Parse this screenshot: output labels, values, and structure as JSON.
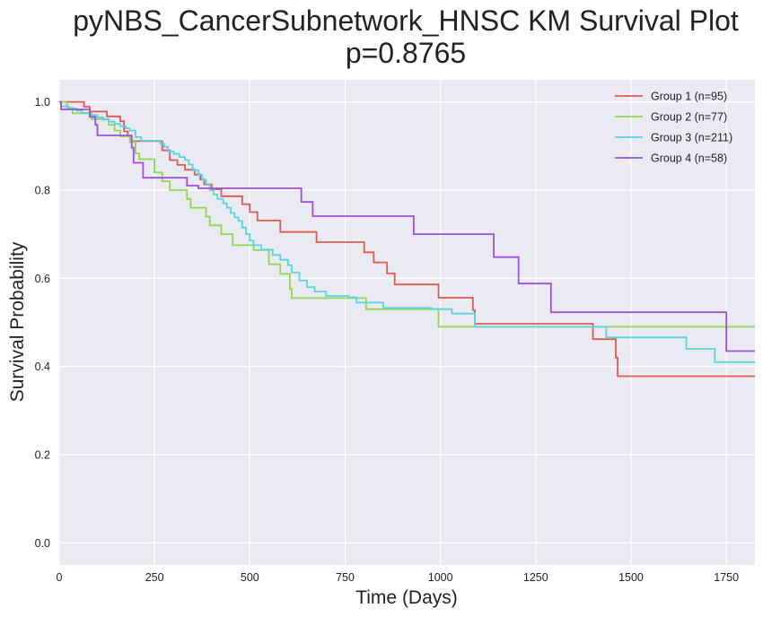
{
  "chart_data": {
    "type": "line",
    "step": true,
    "title": "pyNBS_CancerSubnetwork_HNSC KM Survival Plot",
    "subtitle": "p=0.8765",
    "xlabel": "Time (Days)",
    "ylabel": "Survival Probability",
    "xlim": [
      0,
      1825
    ],
    "ylim": [
      -0.05,
      1.05
    ],
    "xticks": [
      0,
      250,
      500,
      750,
      1000,
      1250,
      1500,
      1750
    ],
    "yticks": [
      0.0,
      0.2,
      0.4,
      0.6,
      0.8,
      1.0
    ],
    "xtick_labels": [
      "0",
      "250",
      "500",
      "750",
      "1000",
      "1250",
      "1500",
      "1750"
    ],
    "ytick_labels": [
      "0.0",
      "0.2",
      "0.4",
      "0.6",
      "0.8",
      "1.0"
    ],
    "grid": true,
    "background": "#eaeaf2",
    "legend_position": "top-right",
    "series": [
      {
        "name": "Group 1 (n=95)",
        "color": "#e05a4f",
        "points": [
          [
            0,
            1.0
          ],
          [
            60,
            1.0
          ],
          [
            65,
            0.989
          ],
          [
            80,
            0.978
          ],
          [
            125,
            0.967
          ],
          [
            150,
            0.967
          ],
          [
            160,
            0.956
          ],
          [
            170,
            0.933
          ],
          [
            180,
            0.922
          ],
          [
            190,
            0.911
          ],
          [
            255,
            0.911
          ],
          [
            270,
            0.89
          ],
          [
            290,
            0.868
          ],
          [
            310,
            0.857
          ],
          [
            330,
            0.846
          ],
          [
            355,
            0.835
          ],
          [
            370,
            0.824
          ],
          [
            380,
            0.813
          ],
          [
            400,
            0.802
          ],
          [
            425,
            0.786
          ],
          [
            465,
            0.786
          ],
          [
            480,
            0.768
          ],
          [
            500,
            0.75
          ],
          [
            520,
            0.731
          ],
          [
            570,
            0.731
          ],
          [
            580,
            0.705
          ],
          [
            670,
            0.705
          ],
          [
            675,
            0.682
          ],
          [
            790,
            0.682
          ],
          [
            800,
            0.659
          ],
          [
            825,
            0.636
          ],
          [
            850,
            0.636
          ],
          [
            860,
            0.611
          ],
          [
            880,
            0.586
          ],
          [
            990,
            0.586
          ],
          [
            995,
            0.556
          ],
          [
            1080,
            0.556
          ],
          [
            1085,
            0.528
          ],
          [
            1090,
            0.497
          ],
          [
            1395,
            0.497
          ],
          [
            1400,
            0.462
          ],
          [
            1455,
            0.462
          ],
          [
            1460,
            0.42
          ],
          [
            1465,
            0.378
          ],
          [
            1825,
            0.378
          ]
        ]
      },
      {
        "name": "Group 2 (n=77)",
        "color": "#8fd651",
        "points": [
          [
            0,
            1.0
          ],
          [
            10,
            1.0
          ],
          [
            20,
            0.987
          ],
          [
            35,
            0.974
          ],
          [
            70,
            0.974
          ],
          [
            85,
            0.961
          ],
          [
            120,
            0.961
          ],
          [
            130,
            0.948
          ],
          [
            145,
            0.935
          ],
          [
            160,
            0.922
          ],
          [
            175,
            0.922
          ],
          [
            185,
            0.909
          ],
          [
            200,
            0.883
          ],
          [
            210,
            0.87
          ],
          [
            240,
            0.87
          ],
          [
            250,
            0.84
          ],
          [
            270,
            0.82
          ],
          [
            290,
            0.8
          ],
          [
            330,
            0.8
          ],
          [
            335,
            0.78
          ],
          [
            345,
            0.76
          ],
          [
            380,
            0.76
          ],
          [
            385,
            0.74
          ],
          [
            395,
            0.72
          ],
          [
            420,
            0.72
          ],
          [
            425,
            0.7
          ],
          [
            445,
            0.7
          ],
          [
            455,
            0.675
          ],
          [
            505,
            0.675
          ],
          [
            510,
            0.664
          ],
          [
            545,
            0.664
          ],
          [
            550,
            0.632
          ],
          [
            575,
            0.632
          ],
          [
            580,
            0.61
          ],
          [
            600,
            0.61
          ],
          [
            605,
            0.576
          ],
          [
            610,
            0.555
          ],
          [
            800,
            0.555
          ],
          [
            805,
            0.53
          ],
          [
            920,
            0.53
          ],
          [
            990,
            0.53
          ],
          [
            995,
            0.49
          ],
          [
            1825,
            0.49
          ]
        ]
      },
      {
        "name": "Group 3 (n=211)",
        "color": "#56d4e0",
        "points": [
          [
            0,
            1.0
          ],
          [
            5,
            0.99
          ],
          [
            25,
            0.985
          ],
          [
            45,
            0.98
          ],
          [
            60,
            0.975
          ],
          [
            80,
            0.97
          ],
          [
            100,
            0.965
          ],
          [
            115,
            0.96
          ],
          [
            130,
            0.955
          ],
          [
            145,
            0.95
          ],
          [
            160,
            0.945
          ],
          [
            175,
            0.94
          ],
          [
            185,
            0.935
          ],
          [
            200,
            0.92
          ],
          [
            215,
            0.912
          ],
          [
            255,
            0.912
          ],
          [
            265,
            0.905
          ],
          [
            275,
            0.898
          ],
          [
            285,
            0.888
          ],
          [
            300,
            0.882
          ],
          [
            315,
            0.875
          ],
          [
            330,
            0.868
          ],
          [
            340,
            0.858
          ],
          [
            350,
            0.845
          ],
          [
            365,
            0.834
          ],
          [
            375,
            0.823
          ],
          [
            385,
            0.812
          ],
          [
            395,
            0.8
          ],
          [
            405,
            0.79
          ],
          [
            415,
            0.78
          ],
          [
            430,
            0.77
          ],
          [
            440,
            0.76
          ],
          [
            450,
            0.748
          ],
          [
            460,
            0.738
          ],
          [
            470,
            0.73
          ],
          [
            480,
            0.715
          ],
          [
            490,
            0.7
          ],
          [
            500,
            0.685
          ],
          [
            510,
            0.675
          ],
          [
            530,
            0.665
          ],
          [
            560,
            0.653
          ],
          [
            580,
            0.642
          ],
          [
            600,
            0.63
          ],
          [
            610,
            0.613
          ],
          [
            630,
            0.595
          ],
          [
            650,
            0.58
          ],
          [
            670,
            0.57
          ],
          [
            700,
            0.56
          ],
          [
            760,
            0.557
          ],
          [
            780,
            0.545
          ],
          [
            850,
            0.533
          ],
          [
            925,
            0.533
          ],
          [
            975,
            0.53
          ],
          [
            1030,
            0.52
          ],
          [
            1085,
            0.52
          ],
          [
            1090,
            0.49
          ],
          [
            1430,
            0.49
          ],
          [
            1435,
            0.466
          ],
          [
            1640,
            0.466
          ],
          [
            1645,
            0.44
          ],
          [
            1715,
            0.44
          ],
          [
            1720,
            0.41
          ],
          [
            1825,
            0.41
          ]
        ]
      },
      {
        "name": "Group 4 (n=58)",
        "color": "#9e4fd9",
        "points": [
          [
            0,
            1.0
          ],
          [
            5,
            0.983
          ],
          [
            70,
            0.983
          ],
          [
            80,
            0.966
          ],
          [
            95,
            0.948
          ],
          [
            100,
            0.924
          ],
          [
            185,
            0.924
          ],
          [
            190,
            0.896
          ],
          [
            195,
            0.862
          ],
          [
            215,
            0.862
          ],
          [
            220,
            0.828
          ],
          [
            330,
            0.828
          ],
          [
            335,
            0.81
          ],
          [
            360,
            0.81
          ],
          [
            365,
            0.804
          ],
          [
            630,
            0.804
          ],
          [
            635,
            0.773
          ],
          [
            660,
            0.773
          ],
          [
            665,
            0.741
          ],
          [
            925,
            0.741
          ],
          [
            930,
            0.7
          ],
          [
            1135,
            0.7
          ],
          [
            1140,
            0.648
          ],
          [
            1200,
            0.648
          ],
          [
            1205,
            0.588
          ],
          [
            1285,
            0.588
          ],
          [
            1290,
            0.523
          ],
          [
            1745,
            0.523
          ],
          [
            1750,
            0.435
          ],
          [
            1825,
            0.435
          ]
        ]
      }
    ]
  }
}
